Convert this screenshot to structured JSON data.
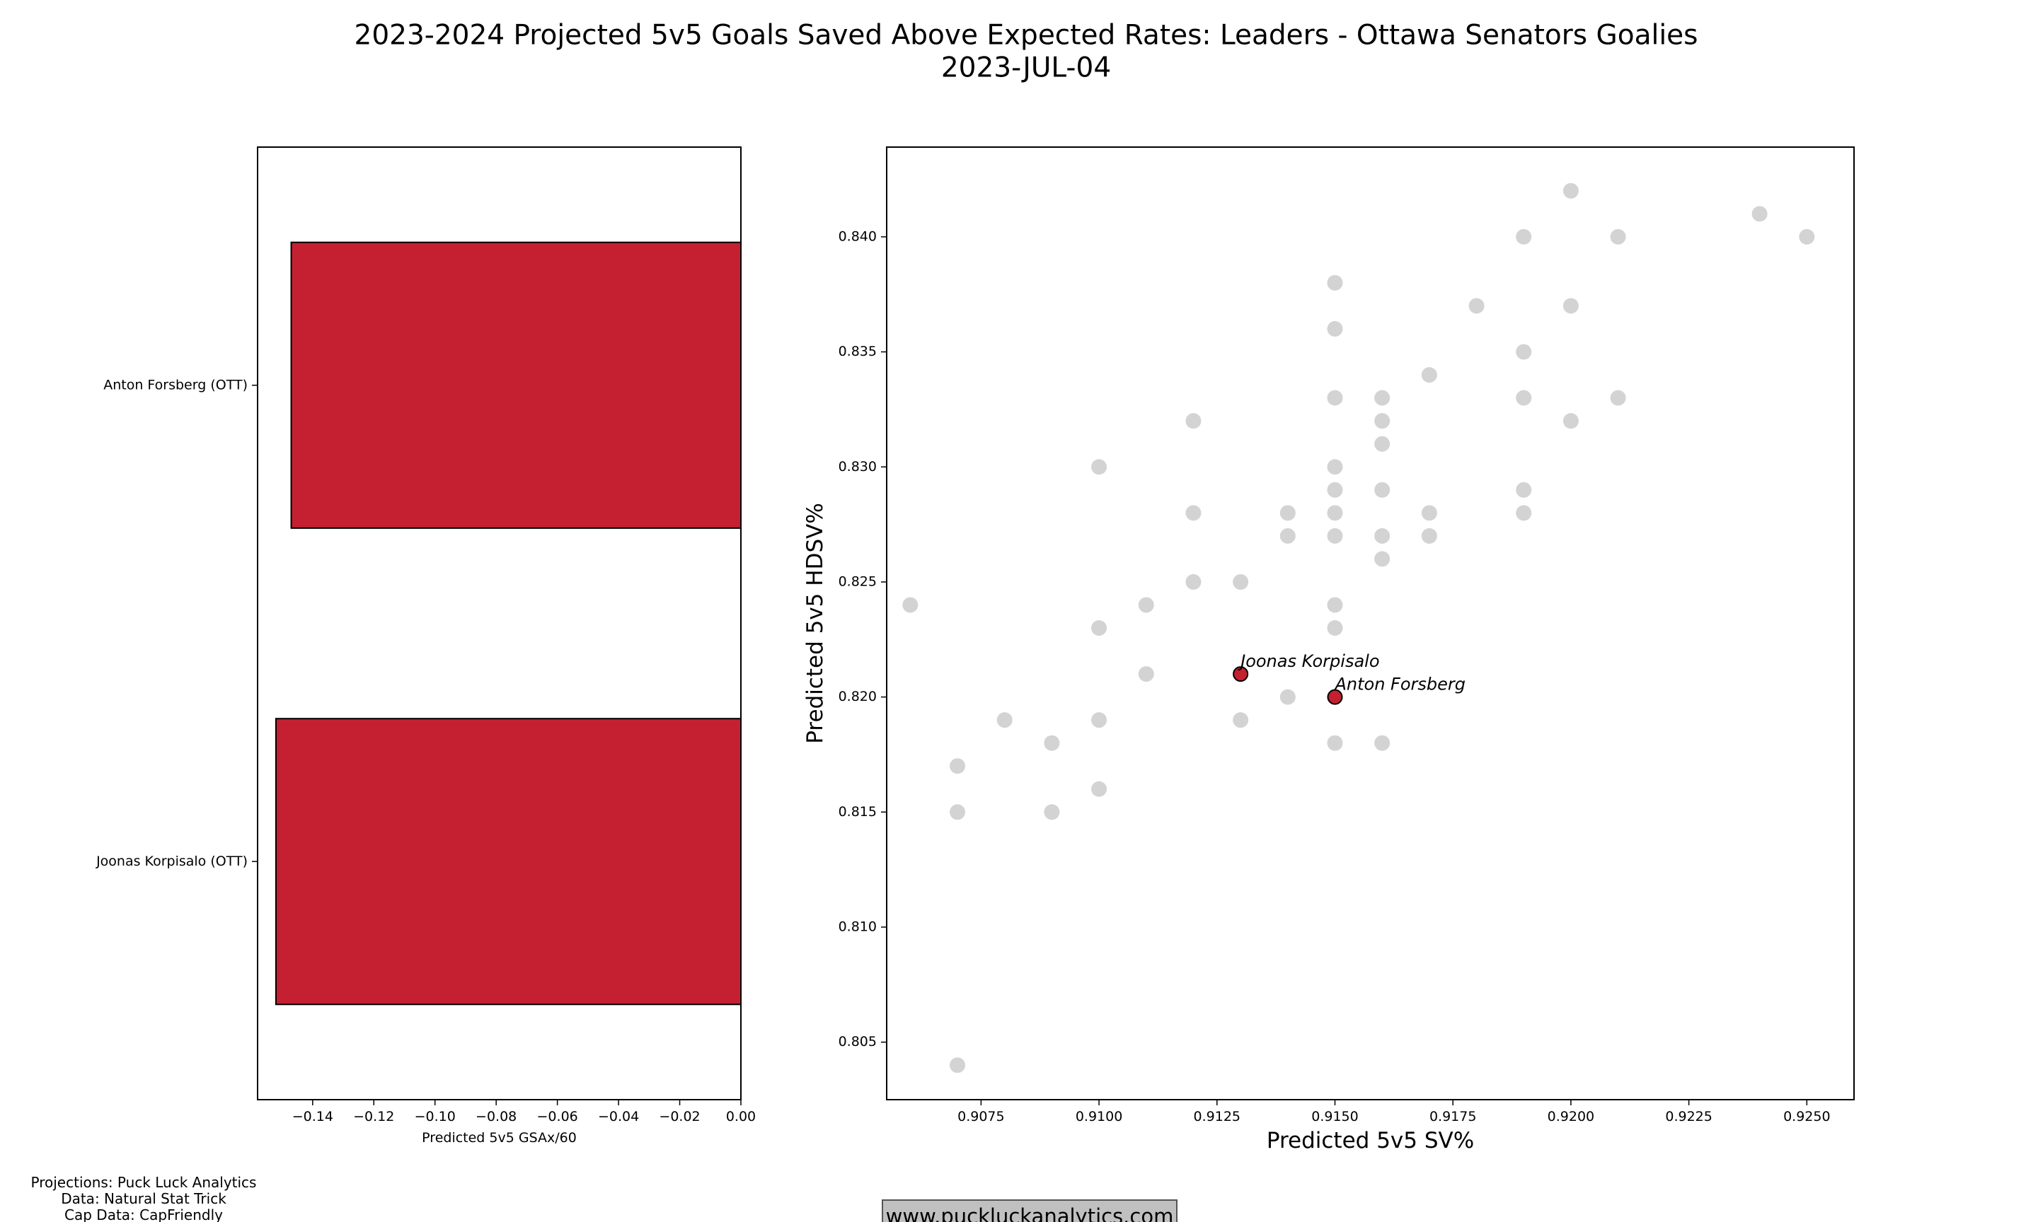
{
  "figure": {
    "title_line1": "2023-2024 Projected 5v5 Goals Saved Above Expected Rates: Leaders - Ottawa Senators Goalies",
    "title_line2": "2023-JUL-04",
    "credits": [
      "Projections: Puck Luck Analytics",
      "Data: Natural Stat Trick",
      "Cap Data: CapFriendly"
    ],
    "website": "www.puckluckanalytics.com",
    "colors": {
      "highlight": "#c42031",
      "background_point": "#d3d3d3",
      "website_box": "#c0c0c0"
    }
  },
  "chart_data": [
    {
      "type": "bar",
      "orientation": "horizontal",
      "categories": [
        "Anton Forsberg (OTT)",
        "Joonas Korpisalo (OTT)"
      ],
      "values": [
        -0.147,
        -0.152
      ],
      "xlabel": "Predicted 5v5 GSAx/60",
      "ylabel": "",
      "xlim": [
        -0.158,
        0.0
      ],
      "xticks": [
        -0.14,
        -0.12,
        -0.1,
        -0.08,
        -0.06,
        -0.04,
        -0.02,
        0.0
      ],
      "xtick_labels": [
        "−0.14",
        "−0.12",
        "−0.10",
        "−0.08",
        "−0.06",
        "−0.04",
        "−0.02",
        "0.00"
      ],
      "bar_color": "#c42031",
      "grid": false
    },
    {
      "type": "scatter",
      "xlabel": "Predicted 5v5 SV%",
      "ylabel": "Predicted 5v5 HDSV%",
      "xlim": [
        0.9055,
        0.926
      ],
      "ylim": [
        0.8025,
        0.8439
      ],
      "xticks": [
        0.9075,
        0.91,
        0.9125,
        0.915,
        0.9175,
        0.92,
        0.9225,
        0.925
      ],
      "xtick_labels": [
        "0.9075",
        "0.9100",
        "0.9125",
        "0.9150",
        "0.9175",
        "0.9200",
        "0.9225",
        "0.9250"
      ],
      "yticks": [
        0.805,
        0.81,
        0.815,
        0.82,
        0.825,
        0.83,
        0.835,
        0.84
      ],
      "ytick_labels": [
        "0.805",
        "0.810",
        "0.815",
        "0.820",
        "0.825",
        "0.830",
        "0.835",
        "0.840"
      ],
      "grid": false,
      "background_points": [
        {
          "x": 0.906,
          "y": 0.824
        },
        {
          "x": 0.907,
          "y": 0.817
        },
        {
          "x": 0.907,
          "y": 0.815
        },
        {
          "x": 0.907,
          "y": 0.804
        },
        {
          "x": 0.908,
          "y": 0.819
        },
        {
          "x": 0.909,
          "y": 0.818
        },
        {
          "x": 0.909,
          "y": 0.815
        },
        {
          "x": 0.91,
          "y": 0.83
        },
        {
          "x": 0.91,
          "y": 0.823
        },
        {
          "x": 0.91,
          "y": 0.819
        },
        {
          "x": 0.91,
          "y": 0.816
        },
        {
          "x": 0.911,
          "y": 0.824
        },
        {
          "x": 0.911,
          "y": 0.821
        },
        {
          "x": 0.912,
          "y": 0.832
        },
        {
          "x": 0.912,
          "y": 0.828
        },
        {
          "x": 0.912,
          "y": 0.825
        },
        {
          "x": 0.913,
          "y": 0.825
        },
        {
          "x": 0.913,
          "y": 0.819
        },
        {
          "x": 0.914,
          "y": 0.828
        },
        {
          "x": 0.914,
          "y": 0.827
        },
        {
          "x": 0.914,
          "y": 0.82
        },
        {
          "x": 0.915,
          "y": 0.838
        },
        {
          "x": 0.915,
          "y": 0.836
        },
        {
          "x": 0.915,
          "y": 0.833
        },
        {
          "x": 0.915,
          "y": 0.83
        },
        {
          "x": 0.915,
          "y": 0.829
        },
        {
          "x": 0.915,
          "y": 0.828
        },
        {
          "x": 0.915,
          "y": 0.827
        },
        {
          "x": 0.915,
          "y": 0.824
        },
        {
          "x": 0.915,
          "y": 0.823
        },
        {
          "x": 0.915,
          "y": 0.818
        },
        {
          "x": 0.916,
          "y": 0.833
        },
        {
          "x": 0.916,
          "y": 0.832
        },
        {
          "x": 0.916,
          "y": 0.831
        },
        {
          "x": 0.916,
          "y": 0.829
        },
        {
          "x": 0.916,
          "y": 0.827
        },
        {
          "x": 0.916,
          "y": 0.826
        },
        {
          "x": 0.916,
          "y": 0.818
        },
        {
          "x": 0.917,
          "y": 0.834
        },
        {
          "x": 0.917,
          "y": 0.828
        },
        {
          "x": 0.917,
          "y": 0.827
        },
        {
          "x": 0.918,
          "y": 0.837
        },
        {
          "x": 0.919,
          "y": 0.84
        },
        {
          "x": 0.919,
          "y": 0.835
        },
        {
          "x": 0.919,
          "y": 0.833
        },
        {
          "x": 0.919,
          "y": 0.829
        },
        {
          "x": 0.919,
          "y": 0.828
        },
        {
          "x": 0.92,
          "y": 0.842
        },
        {
          "x": 0.92,
          "y": 0.837
        },
        {
          "x": 0.92,
          "y": 0.832
        },
        {
          "x": 0.921,
          "y": 0.84
        },
        {
          "x": 0.921,
          "y": 0.833
        },
        {
          "x": 0.924,
          "y": 0.841
        },
        {
          "x": 0.925,
          "y": 0.84
        }
      ],
      "highlighted_points": [
        {
          "label": "Joonas Korpisalo",
          "x": 0.913,
          "y": 0.821
        },
        {
          "label": "Anton Forsberg",
          "x": 0.915,
          "y": 0.82
        }
      ]
    }
  ]
}
